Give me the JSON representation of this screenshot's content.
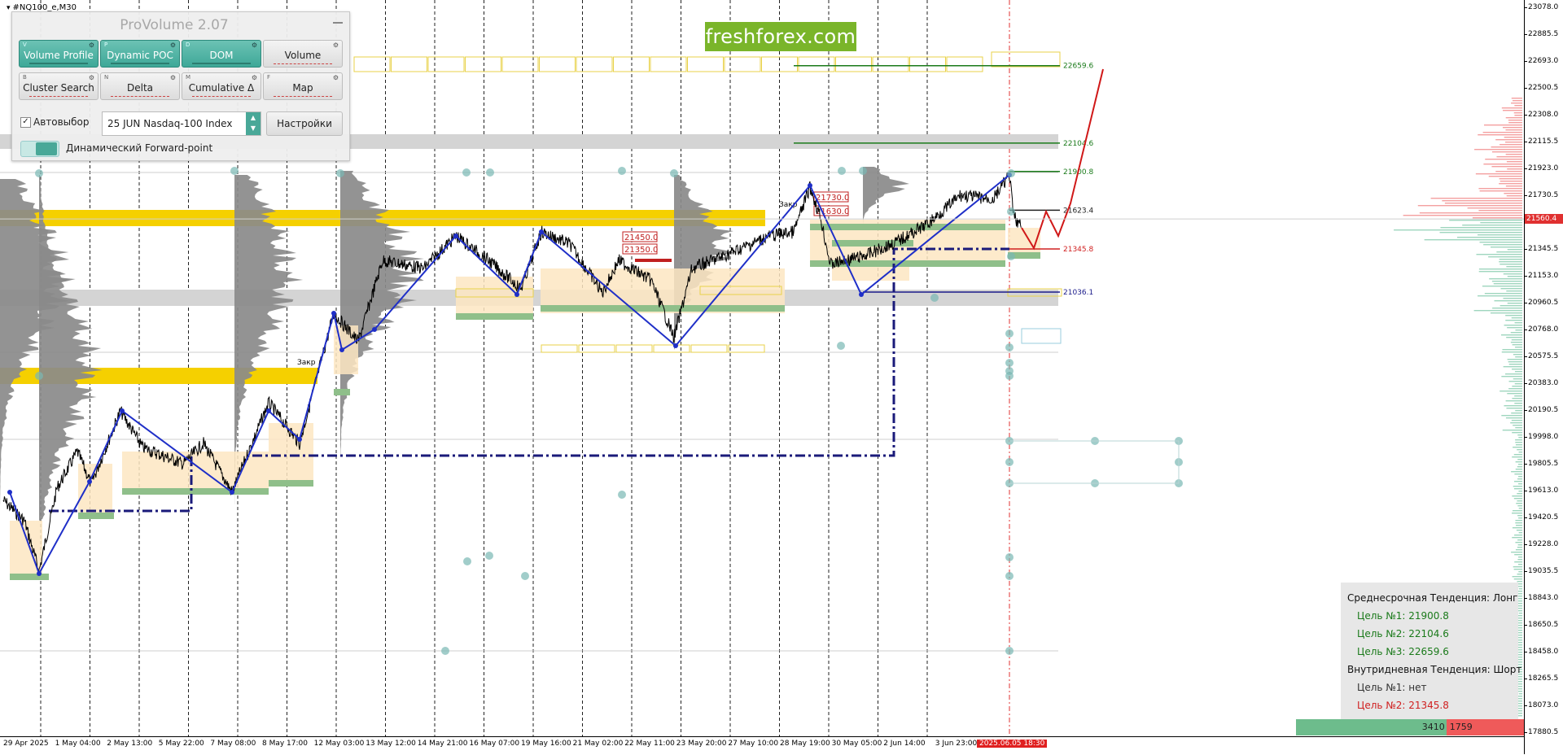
{
  "symbol": "#NQ100_e,M30",
  "logo": "freshforex.com",
  "panel": {
    "title": "ProVolume 2.07",
    "buttons": [
      {
        "key": "V",
        "label": "Volume Profile",
        "on": true
      },
      {
        "key": "P",
        "label": "Dynamic POC",
        "on": true
      },
      {
        "key": "D",
        "label": "DOM",
        "on": true
      },
      {
        "key": "",
        "label": "Volume",
        "on": false
      },
      {
        "key": "B",
        "label": "Cluster Search",
        "on": false
      },
      {
        "key": "N",
        "label": "Delta",
        "on": false
      },
      {
        "key": "M",
        "label": "Cumulative Δ",
        "on": false
      },
      {
        "key": "F",
        "label": "Map",
        "on": false
      }
    ],
    "autoselect": "Автовыбор",
    "instrument": "25 JUN Nasdaq-100 Index",
    "settings": "Настройки",
    "forward": "Динамический Forward-point"
  },
  "yaxis": {
    "ticks": [
      "23078.0",
      "22885.5",
      "22693.0",
      "22500.5",
      "22308.0",
      "22115.5",
      "21923.0",
      "21730.5",
      "21538.0",
      "21345.5",
      "21153.0",
      "20960.5",
      "20768.0",
      "20575.5",
      "20383.0",
      "20190.5",
      "19998.0",
      "19805.5",
      "19613.0",
      "19420.5",
      "19228.0",
      "19035.5",
      "18843.0",
      "18650.5",
      "18458.0",
      "18265.5",
      "18073.0",
      "17880.5"
    ],
    "current_price": "21560.4"
  },
  "xaxis": {
    "ticks": [
      "29 Apr 2025",
      "1 May 04:00",
      "2 May 13:00",
      "5 May 22:00",
      "7 May 08:00",
      "8 May 17:00",
      "12 May 03:00",
      "13 May 12:00",
      "14 May 21:00",
      "16 May 07:00",
      "19 May 16:00",
      "21 May 02:00",
      "22 May 11:00",
      "23 May 20:00",
      "27 May 10:00",
      "28 May 19:00",
      "30 May 05:00",
      "2 Jun 14:00",
      "3 Jun 23:00"
    ],
    "highlight": "2025.06.05 18:30"
  },
  "levels": [
    {
      "label": "22659.6",
      "price": 22659.6,
      "color": "#1a7a1a"
    },
    {
      "label": "22104.6",
      "price": 22104.6,
      "color": "#1a7a1a"
    },
    {
      "label": "21900.8",
      "price": 21900.8,
      "color": "#1a7a1a"
    },
    {
      "label": "21623.4",
      "price": 21623.4,
      "color": "#222222"
    },
    {
      "label": "21345.8",
      "price": 21345.8,
      "color": "#d02020"
    },
    {
      "label": "21036.1",
      "price": 21036.1,
      "color": "#1a1a8a"
    }
  ],
  "boxes": [
    "21450.0",
    "21350.0",
    "21730.0",
    "21630.0"
  ],
  "annotations": [
    "Закр",
    "Закр"
  ],
  "trend": {
    "mid_title": "Среднесрочная Тенденция: Лонг",
    "mid_targets": [
      "Цель №1: 21900.8",
      "Цель №2: 22104.6",
      "Цель №3: 22659.6"
    ],
    "intra_title": "Внутридневная Тенденция: Шорт",
    "intra_targets": [
      "Цель №1: нет",
      "Цель №2: 21345.8"
    ],
    "long_volume": 3410,
    "short_volume": 1759,
    "long_label": "3410",
    "short_label": "1759",
    "colors": {
      "long": "#6dbc8c",
      "short": "#ef5a5a",
      "target_green": "#1a7a1a",
      "target_red": "#d02020"
    }
  }
}
